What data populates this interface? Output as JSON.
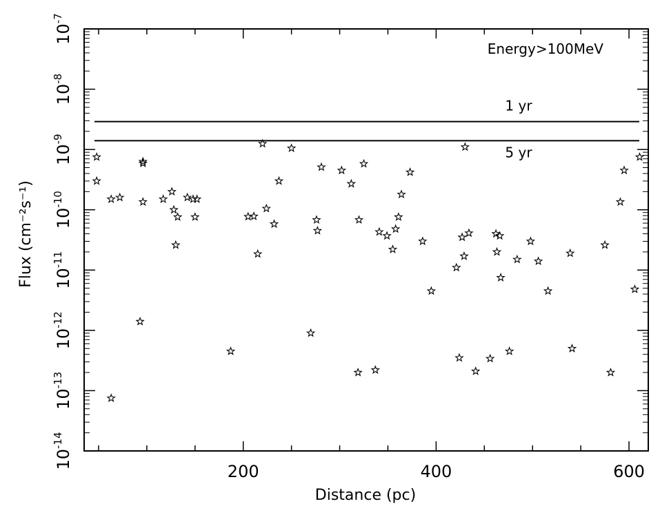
{
  "chart_data": {
    "type": "scatter",
    "title": "",
    "annotation": "Energy>100MeV",
    "xlabel": "Distance (pc)",
    "ylabel": "Flux (cm⁻²s⁻¹)",
    "xlim": [
      35,
      620
    ],
    "ylim": [
      -14,
      -7
    ],
    "y_scale": "log10",
    "xticks": [
      200,
      400,
      600
    ],
    "xtick_labels": [
      "200",
      "400",
      "600"
    ],
    "yticks": [
      -14,
      -13,
      -12,
      -11,
      -10,
      -9,
      -8,
      -7
    ],
    "ytick_labels": [
      {
        "base": "10",
        "exp": "-14"
      },
      {
        "base": "10",
        "exp": "-13"
      },
      {
        "base": "10",
        "exp": "-12"
      },
      {
        "base": "10",
        "exp": "-11"
      },
      {
        "base": "10",
        "exp": "-10"
      },
      {
        "base": "10",
        "exp": "-9"
      },
      {
        "base": "10",
        "exp": "-8"
      },
      {
        "base": "10",
        "exp": "-7"
      }
    ],
    "marker": "star",
    "reference_lines": [
      {
        "label": "1 yr",
        "y": 2.9e-09
      },
      {
        "label": "5 yr",
        "y": 1.4e-09
      }
    ],
    "points": [
      [
        48,
        7.5e-10
      ],
      [
        48,
        3e-10
      ],
      [
        63,
        7.5e-14
      ],
      [
        63,
        1.5e-10
      ],
      [
        72,
        1.6e-10
      ],
      [
        93,
        1.4e-12
      ],
      [
        96,
        6.3e-10
      ],
      [
        96,
        5.9e-10
      ],
      [
        96,
        1.35e-10
      ],
      [
        117,
        1.5e-10
      ],
      [
        126,
        2e-10
      ],
      [
        128,
        1e-10
      ],
      [
        130,
        2.6e-11
      ],
      [
        132,
        7.6e-11
      ],
      [
        142,
        1.6e-10
      ],
      [
        148,
        1.5e-10
      ],
      [
        150,
        7.6e-11
      ],
      [
        152,
        1.5e-10
      ],
      [
        187,
        4.5e-13
      ],
      [
        205,
        7.7e-11
      ],
      [
        211,
        7.8e-11
      ],
      [
        215,
        1.85e-11
      ],
      [
        220,
        1.25e-09
      ],
      [
        224,
        1.05e-10
      ],
      [
        232,
        5.8e-11
      ],
      [
        237,
        3e-10
      ],
      [
        250,
        1.05e-09
      ],
      [
        270,
        9e-13
      ],
      [
        276,
        6.8e-11
      ],
      [
        277,
        4.5e-11
      ],
      [
        281,
        5.1e-10
      ],
      [
        302,
        4.5e-10
      ],
      [
        312,
        2.7e-10
      ],
      [
        319,
        2e-13
      ],
      [
        320,
        6.8e-11
      ],
      [
        325,
        5.8e-10
      ],
      [
        337,
        2.2e-13
      ],
      [
        341,
        4.3e-11
      ],
      [
        349,
        3.7e-11
      ],
      [
        355,
        2.2e-11
      ],
      [
        358,
        4.8e-11
      ],
      [
        361,
        7.6e-11
      ],
      [
        364,
        1.8e-10
      ],
      [
        373,
        4.2e-10
      ],
      [
        386,
        3e-11
      ],
      [
        395,
        4.5e-12
      ],
      [
        421,
        1.1e-11
      ],
      [
        424,
        3.5e-13
      ],
      [
        427,
        3.5e-11
      ],
      [
        429,
        1.7e-11
      ],
      [
        430,
        1.1e-09
      ],
      [
        434,
        4.1e-11
      ],
      [
        441,
        2.1e-13
      ],
      [
        456,
        3.4e-13
      ],
      [
        462,
        4e-11
      ],
      [
        463,
        2e-11
      ],
      [
        466,
        3.7e-11
      ],
      [
        467,
        7.5e-12
      ],
      [
        476,
        4.5e-13
      ],
      [
        484,
        1.5e-11
      ],
      [
        498,
        3e-11
      ],
      [
        506,
        1.4e-11
      ],
      [
        516,
        4.5e-12
      ],
      [
        539,
        1.9e-11
      ],
      [
        541,
        5e-13
      ],
      [
        575,
        2.6e-11
      ],
      [
        581,
        2e-13
      ],
      [
        591,
        1.35e-10
      ],
      [
        595,
        4.5e-10
      ],
      [
        606,
        4.8e-12
      ],
      [
        611,
        7.5e-10
      ]
    ]
  }
}
